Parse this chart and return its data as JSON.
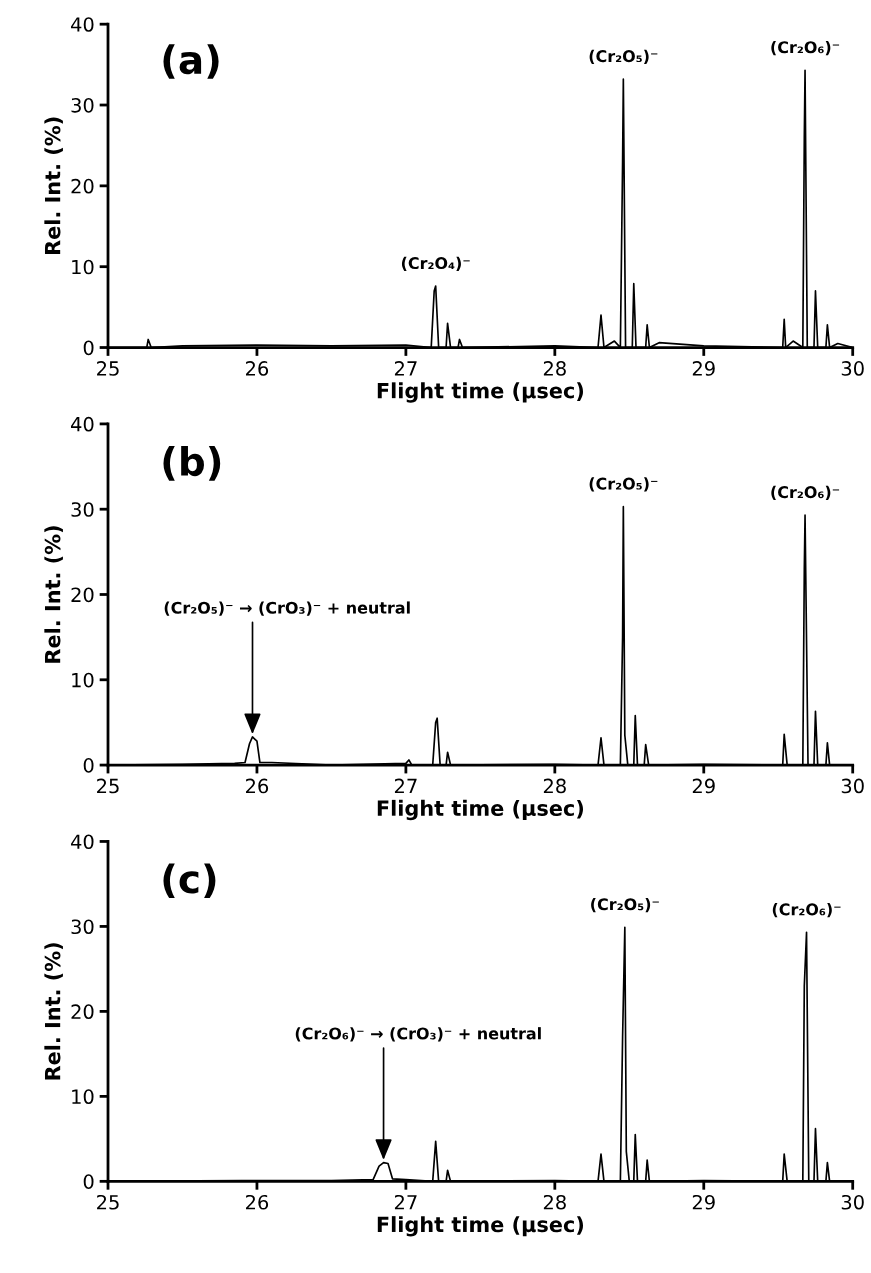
{
  "chart_data": [
    {
      "type": "line",
      "title": "(a)",
      "xlabel": "Flight time (μsec)",
      "ylabel": "Rel. Int. (%)",
      "xlim": [
        25,
        30
      ],
      "ylim": [
        0,
        40
      ],
      "xticks": [
        25,
        26,
        27,
        28,
        29,
        30
      ],
      "yticks": [
        0,
        10,
        20,
        30,
        40
      ],
      "grid": false,
      "legend": false,
      "series": [
        {
          "color": "#000000",
          "x": [
            25.0,
            25.26,
            25.27,
            25.29,
            25.5,
            26.0,
            26.5,
            27.0,
            27.17,
            27.19,
            27.2,
            27.22,
            27.27,
            27.28,
            27.3,
            27.35,
            27.36,
            27.38,
            28.0,
            28.29,
            28.31,
            28.33,
            28.4,
            28.44,
            28.455,
            28.46,
            28.475,
            28.52,
            28.53,
            28.545,
            28.61,
            28.62,
            28.635,
            28.7,
            29.0,
            29.53,
            29.54,
            29.55,
            29.6,
            29.665,
            29.675,
            29.68,
            29.695,
            29.74,
            29.75,
            29.765,
            29.82,
            29.83,
            29.845,
            29.9,
            30.0
          ],
          "values": [
            0,
            0,
            1.0,
            0,
            0.2,
            0.3,
            0.2,
            0.3,
            0,
            7.0,
            7.6,
            0,
            0,
            3.0,
            0,
            0,
            1.0,
            0,
            0.2,
            0,
            4.0,
            0,
            0.8,
            0,
            23,
            33.2,
            0,
            0,
            7.9,
            0,
            0,
            2.8,
            0,
            0.6,
            0.2,
            0,
            3.5,
            0,
            0.8,
            0,
            26,
            34.3,
            0,
            0,
            7.0,
            0,
            0,
            2.8,
            0,
            0.5,
            0
          ]
        }
      ],
      "annotations": [
        {
          "text": "(Cr₂O₄)⁻",
          "x": 27.2,
          "y": 7.6
        },
        {
          "text": "(Cr₂O₅)⁻",
          "x": 28.46,
          "y": 33.2
        },
        {
          "text": "(Cr₂O₆)⁻",
          "x": 29.68,
          "y": 34.3
        }
      ]
    },
    {
      "type": "line",
      "title": "(b)",
      "xlabel": "Flight time (μsec)",
      "ylabel": "Rel. Int. (%)",
      "xlim": [
        25,
        30
      ],
      "ylim": [
        0,
        40
      ],
      "xticks": [
        25,
        26,
        27,
        28,
        29,
        30
      ],
      "yticks": [
        0,
        10,
        20,
        30,
        40
      ],
      "grid": false,
      "legend": false,
      "series": [
        {
          "color": "#000000",
          "x": [
            25.0,
            25.5,
            25.85,
            25.92,
            25.95,
            25.97,
            26.0,
            26.02,
            26.1,
            26.5,
            27.0,
            27.02,
            27.04,
            27.18,
            27.2,
            27.21,
            27.23,
            27.27,
            27.28,
            27.3,
            28.0,
            28.29,
            28.31,
            28.33,
            28.44,
            28.455,
            28.46,
            28.47,
            28.49,
            28.53,
            28.54,
            28.555,
            28.6,
            28.61,
            28.63,
            29.0,
            29.53,
            29.54,
            29.56,
            29.665,
            29.675,
            29.68,
            29.7,
            29.74,
            29.75,
            29.765,
            29.82,
            29.83,
            29.845,
            30.0
          ],
          "values": [
            0,
            0.1,
            0.2,
            0.3,
            2.5,
            3.3,
            2.8,
            0.3,
            0.3,
            0,
            0.2,
            0.6,
            0,
            0,
            5.0,
            5.5,
            0,
            0,
            1.5,
            0,
            0.1,
            0,
            3.2,
            0,
            0,
            15,
            30.3,
            3.5,
            0,
            0,
            5.8,
            0,
            0,
            2.4,
            0,
            0.1,
            0,
            3.6,
            0,
            0,
            23,
            29.3,
            0,
            0,
            6.3,
            0,
            0,
            2.6,
            0,
            0
          ]
        }
      ],
      "annotations": [
        {
          "text": "(Cr₂O₅)⁻ → (CrO₃)⁻ + neutral",
          "x": 25.97,
          "y": 3.3
        },
        {
          "text": "(Cr₂O₅)⁻",
          "x": 28.46,
          "y": 30.3
        },
        {
          "text": "(Cr₂O₆)⁻",
          "x": 29.68,
          "y": 29.3
        }
      ]
    },
    {
      "type": "line",
      "title": "(c)",
      "xlabel": "Flight time (μsec)",
      "ylabel": "Rel. Int. (%)",
      "xlim": [
        25,
        30
      ],
      "ylim": [
        0,
        40
      ],
      "xticks": [
        25,
        26,
        27,
        28,
        29,
        30
      ],
      "yticks": [
        0,
        10,
        20,
        30,
        40
      ],
      "grid": false,
      "legend": false,
      "series": [
        {
          "color": "#000000",
          "x": [
            25.0,
            25.9,
            26.0,
            26.5,
            26.78,
            26.82,
            26.85,
            26.88,
            26.91,
            27.0,
            27.18,
            27.2,
            27.22,
            27.27,
            27.28,
            27.3,
            28.0,
            28.29,
            28.31,
            28.33,
            28.44,
            28.455,
            28.47,
            28.48,
            28.5,
            28.53,
            28.54,
            28.555,
            28.61,
            28.62,
            28.635,
            29.0,
            29.53,
            29.54,
            29.56,
            29.665,
            29.675,
            29.69,
            29.705,
            29.74,
            29.75,
            29.765,
            29.82,
            29.83,
            29.845,
            30.0
          ],
          "values": [
            0,
            0.1,
            0.1,
            0.1,
            0.2,
            1.8,
            2.2,
            2.1,
            0.3,
            0.2,
            0,
            4.7,
            0,
            0,
            1.3,
            0,
            0.1,
            0,
            3.2,
            0,
            0,
            17,
            29.9,
            3.5,
            0,
            0,
            5.5,
            0,
            0,
            2.5,
            0,
            0.1,
            0,
            3.2,
            0,
            0,
            23,
            29.3,
            0,
            0,
            6.2,
            0,
            0,
            2.2,
            0,
            0
          ]
        }
      ],
      "annotations": [
        {
          "text": "(Cr₂O₆)⁻ → (CrO₃)⁻ + neutral",
          "x": 26.85,
          "y": 2.2
        },
        {
          "text": "(Cr₂O₅)⁻",
          "x": 28.47,
          "y": 29.9
        },
        {
          "text": "(Cr₂O₆)⁻",
          "x": 29.69,
          "y": 29.3
        }
      ]
    }
  ]
}
